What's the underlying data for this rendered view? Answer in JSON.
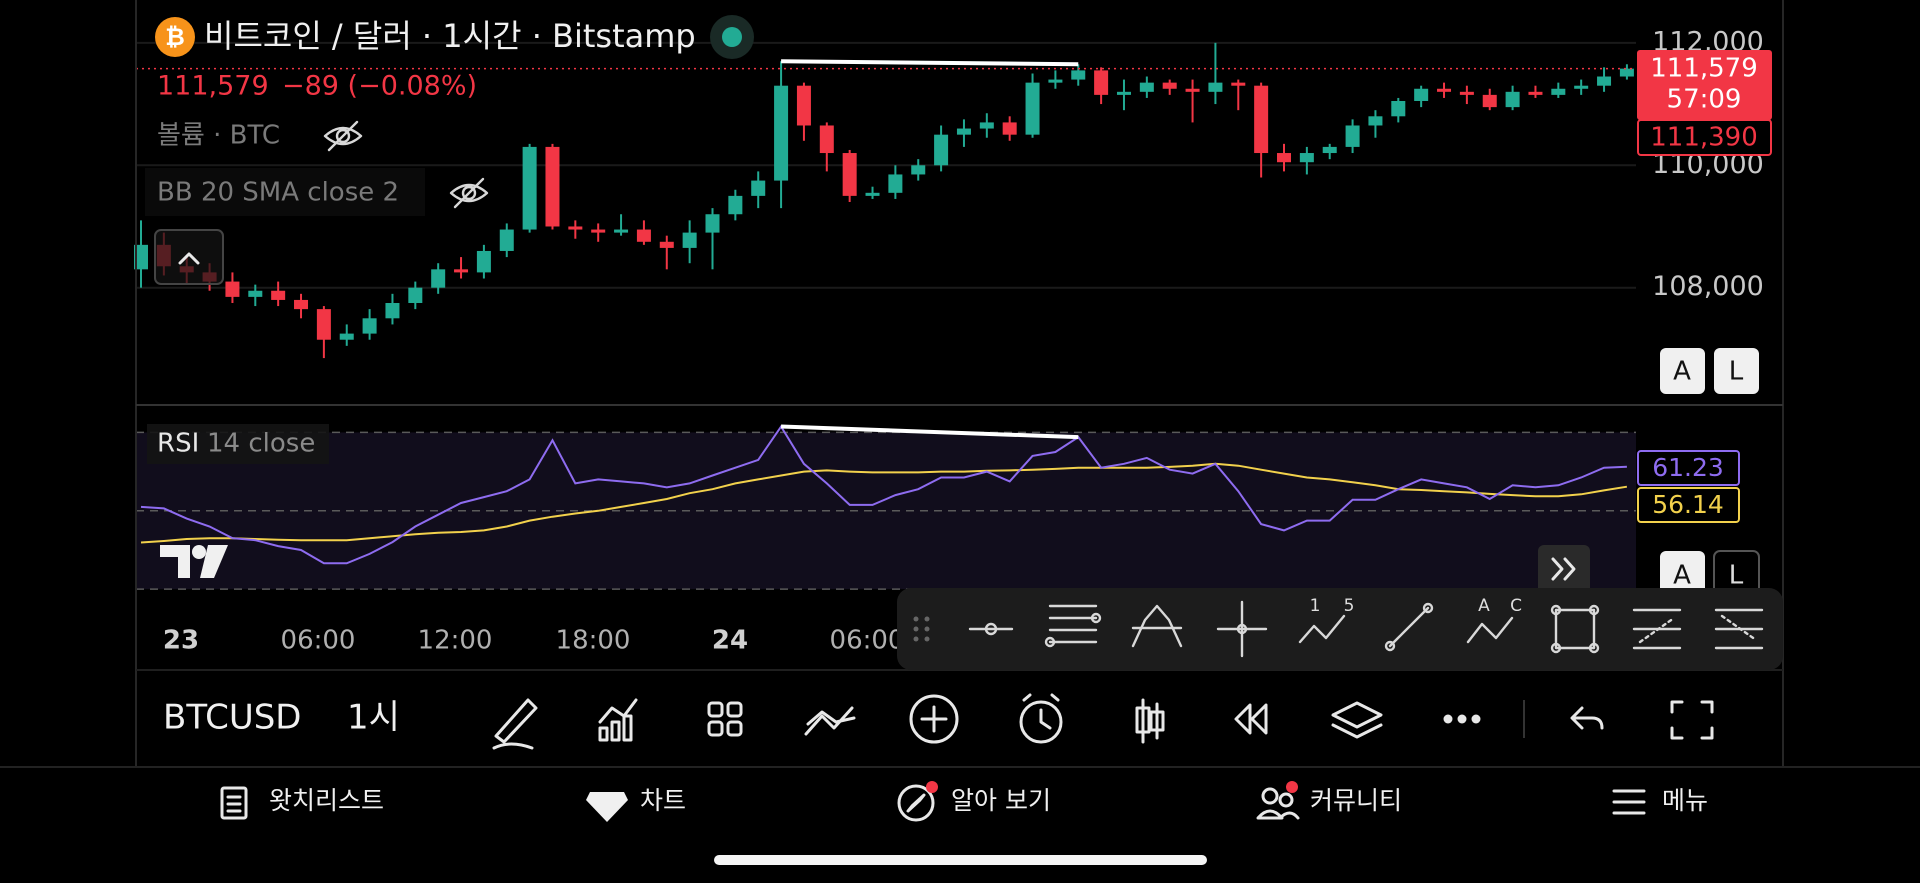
{
  "header": {
    "title": "비트코인 / 달러 · 1시간 · Bitstamp",
    "change": "−89 (−0.08%)",
    "volume_label": "볼륨 · BTC",
    "bb_label": "BB 20 SMA close 2"
  },
  "chart_data": {
    "type": "candlestick",
    "candles": [
      [
        108300,
        109100,
        108000,
        108700
      ],
      [
        108700,
        108900,
        108200,
        108350
      ],
      [
        108350,
        108500,
        108050,
        108250
      ],
      [
        108250,
        108400,
        107950,
        108100
      ],
      [
        108100,
        108250,
        107750,
        107850
      ],
      [
        107850,
        108050,
        107700,
        107950
      ],
      [
        107950,
        108100,
        107700,
        107800
      ],
      [
        107800,
        107900,
        107500,
        107650
      ],
      [
        107650,
        107700,
        106850,
        107150
      ],
      [
        107150,
        107400,
        107050,
        107250
      ],
      [
        107250,
        107650,
        107150,
        107500
      ],
      [
        107500,
        107900,
        107400,
        107750
      ],
      [
        107750,
        108100,
        107650,
        108000
      ],
      [
        108000,
        108400,
        107900,
        108300
      ],
      [
        108300,
        108500,
        108150,
        108250
      ],
      [
        108250,
        108700,
        108150,
        108600
      ],
      [
        108600,
        109050,
        108500,
        108950
      ],
      [
        108950,
        110350,
        108900,
        110300
      ],
      [
        110300,
        110350,
        108950,
        109000
      ],
      [
        109000,
        109100,
        108800,
        108950
      ],
      [
        108950,
        109050,
        108750,
        108900
      ],
      [
        108900,
        109200,
        108850,
        108950
      ],
      [
        108950,
        109100,
        108700,
        108750
      ],
      [
        108750,
        108850,
        108300,
        108650
      ],
      [
        108650,
        109100,
        108400,
        108900
      ],
      [
        108900,
        109300,
        108300,
        109200
      ],
      [
        109200,
        109600,
        109100,
        109500
      ],
      [
        109500,
        109900,
        109300,
        109750
      ],
      [
        109750,
        111700,
        109300,
        111300
      ],
      [
        111300,
        111350,
        110400,
        110650
      ],
      [
        110650,
        110700,
        109900,
        110200
      ],
      [
        110200,
        110250,
        109400,
        109500
      ],
      [
        109500,
        109650,
        109450,
        109550
      ],
      [
        109550,
        110000,
        109450,
        109850
      ],
      [
        109850,
        110100,
        109750,
        110000
      ],
      [
        110000,
        110650,
        109900,
        110500
      ],
      [
        110500,
        110750,
        110300,
        110600
      ],
      [
        110600,
        110850,
        110450,
        110700
      ],
      [
        110700,
        110800,
        110400,
        110500
      ],
      [
        110500,
        111500,
        110450,
        111350
      ],
      [
        111350,
        111550,
        111250,
        111400
      ],
      [
        111400,
        111650,
        111300,
        111550
      ],
      [
        111550,
        111600,
        111000,
        111150
      ],
      [
        111150,
        111400,
        110900,
        111200
      ],
      [
        111200,
        111450,
        111100,
        111350
      ],
      [
        111350,
        111400,
        111150,
        111250
      ],
      [
        111250,
        111400,
        110700,
        111200
      ],
      [
        111200,
        112000,
        111000,
        111350
      ],
      [
        111350,
        111400,
        110900,
        111300
      ],
      [
        111300,
        111350,
        109800,
        110200
      ],
      [
        110200,
        110350,
        109900,
        110050
      ],
      [
        110050,
        110300,
        109850,
        110200
      ],
      [
        110200,
        110350,
        110100,
        110300
      ],
      [
        110300,
        110750,
        110200,
        110650
      ],
      [
        110650,
        110900,
        110450,
        110800
      ],
      [
        110800,
        111100,
        110700,
        111050
      ],
      [
        111050,
        111300,
        110950,
        111250
      ],
      [
        111250,
        111350,
        111100,
        111200
      ],
      [
        111200,
        111300,
        111000,
        111150
      ],
      [
        111150,
        111250,
        110900,
        110950
      ],
      [
        110950,
        111300,
        110900,
        111200
      ],
      [
        111200,
        111300,
        111100,
        111150
      ],
      [
        111150,
        111350,
        111100,
        111250
      ],
      [
        111250,
        111400,
        111150,
        111300
      ],
      [
        111300,
        111600,
        111200,
        111450
      ],
      [
        111450,
        111650,
        111400,
        111579
      ]
    ],
    "ylim": [
      106100,
      112700
    ],
    "yticks": [
      {
        "value": 112000,
        "label": "112,000"
      },
      {
        "value": 110000,
        "label": "110,000"
      },
      {
        "value": 108000,
        "label": "108,000"
      }
    ],
    "grid": true,
    "up_color": "#22ab94",
    "down_color": "#f23645",
    "last_price": {
      "value": 111579,
      "label": "111,579"
    },
    "countdown": "57:09",
    "other_price": "111,390",
    "x_labels": [
      "23",
      "06:00",
      "12:00",
      "18:00",
      "24",
      "06:00"
    ],
    "rsi": {
      "title": "RSI",
      "params": "14 close",
      "ylim": [
        28,
        77
      ],
      "levels": [
        70,
        50,
        30
      ],
      "color": "#8e6cf0",
      "sma_color": "#f2d14c",
      "values": [
        51,
        50.6,
        48,
        46,
        43,
        42.5,
        41,
        40,
        36.6,
        36.6,
        39,
        42,
        46,
        49,
        52,
        53.5,
        55,
        58,
        68,
        57,
        58,
        57.5,
        57,
        56,
        57,
        59,
        61,
        63,
        71.5,
        62,
        57,
        51.5,
        51.5,
        54,
        55.5,
        58.5,
        58.5,
        60,
        57.5,
        64,
        65,
        68.8,
        61,
        62,
        63.5,
        60.5,
        59.5,
        62,
        55,
        46.6,
        45,
        47.5,
        47.5,
        52.8,
        52.8,
        55.5,
        58,
        57,
        56,
        53,
        56.5,
        56,
        56.5,
        58.5,
        61,
        61.23
      ],
      "sma": [
        41.9,
        42.3,
        42.8,
        43,
        43,
        42.8,
        42.6,
        42.5,
        42.5,
        42.5,
        43,
        43.5,
        44,
        44.4,
        44.6,
        45,
        46,
        47.5,
        48.5,
        49.3,
        50,
        51,
        52,
        53,
        54.5,
        55.5,
        57,
        58,
        59,
        60,
        60.3,
        60,
        59.8,
        59.8,
        59.8,
        60,
        60,
        60.2,
        60.3,
        60.5,
        60.7,
        61,
        61,
        61,
        61,
        61.2,
        61.5,
        62,
        61.5,
        60.5,
        59.5,
        58.5,
        58,
        57.3,
        56.5,
        55.5,
        55.3,
        55,
        54.7,
        54.3,
        54,
        53.7,
        53.7,
        54.2,
        55.2,
        56.14
      ],
      "value_label": "61.23",
      "sma_label": "56.14"
    }
  },
  "scale_buttons": [
    "A",
    "L"
  ],
  "toolbar": {
    "symbol": "BTCUSD",
    "interval": "1시",
    "tool_tags": [
      "1",
      "5",
      "A",
      "C"
    ]
  },
  "nav": [
    "왓치리스트",
    "차트",
    "알아 보기",
    "커뮤니티",
    "메뉴"
  ]
}
